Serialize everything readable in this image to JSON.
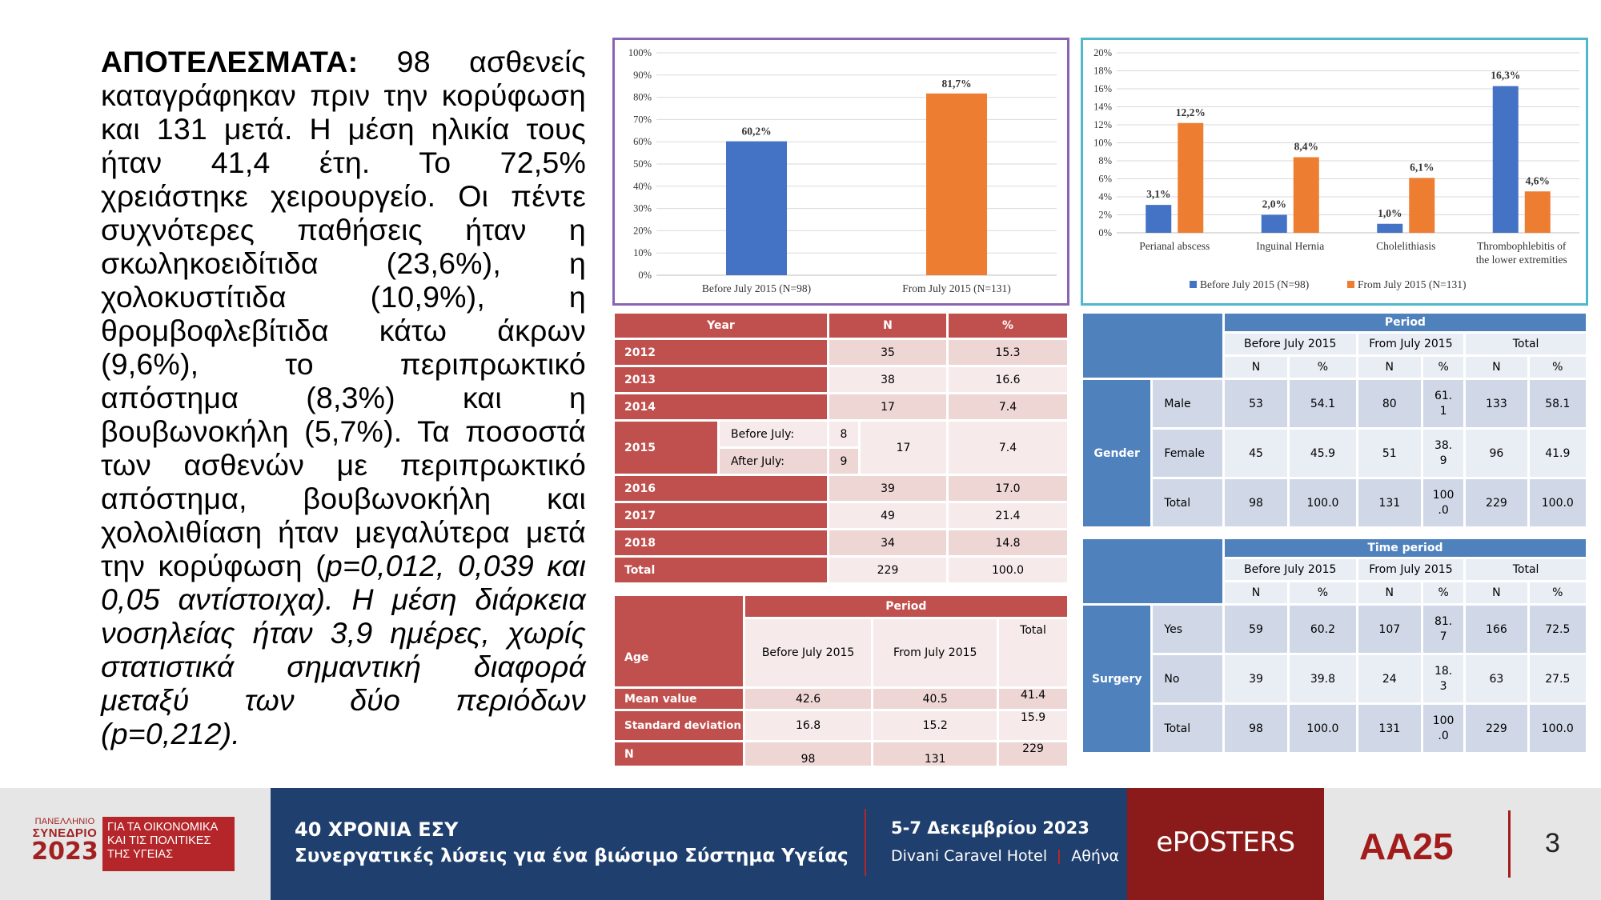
{
  "abstract": {
    "lines": [
      {
        "bold": "ΑΠΟΤΕΛΕΣΜΑΤΑ:",
        "text": " 98 ασθενείς"
      },
      {
        "text": "καταγράφηκαν πριν την κορύφωση"
      },
      {
        "text": "και 131 μετά. Η μέση ηλικία τους"
      },
      {
        "text": "ήταν 41,4 έτη. Το 72,5%"
      },
      {
        "text": "χρειάστηκε χειρουργείο. Οι πέντε"
      },
      {
        "text": "συχνότερες παθήσεις ήταν η"
      },
      {
        "text": "σκωληκοειδίτιδα (23,6%), η"
      },
      {
        "text": "χολοκυστίτιδα (10,9%), η"
      },
      {
        "text": "θρομβοφλεβίτιδα κάτω άκρων"
      },
      {
        "text": "(9,6%), το περιπρωκτικό"
      },
      {
        "text": "απόστημα (8,3%) και η"
      },
      {
        "text": "βουβωνοκήλη (5,7%). Τα ποσοστά"
      },
      {
        "text": "των ασθενών με περιπρωκτικό"
      },
      {
        "text": "απόστημα, βουβωνοκήλη και"
      },
      {
        "text": "χολολιθίαση ήταν μεγαλύτερα μετά"
      },
      {
        "text": "την κορύφωση (",
        "italic": "p=0,012, 0,039 και"
      },
      {
        "italic": "0,05 αντίστοιχα). Η μέση διάρκεια"
      },
      {
        "italic": "νοσηλείας ήταν 3,9 ημέρες, χωρίς"
      },
      {
        "italic": "στατιστικά σημαντική διαφορά"
      },
      {
        "italic": "μεταξύ των δύο περιόδων"
      },
      {
        "italic": "(p=0,212)."
      }
    ]
  },
  "colors": {
    "blue": "#4472c4",
    "orange": "#ed7d31"
  },
  "chart_data": [
    {
      "type": "bar",
      "categories": [
        "Before July 2015 (N=98)",
        "From July 2015 (N=131)"
      ],
      "values": [
        60.2,
        81.7
      ],
      "data_labels": [
        "60,2%",
        "81,7%"
      ],
      "bar_colors": [
        "#4472c4",
        "#ed7d31"
      ],
      "yticks": [
        "0%",
        "10%",
        "20%",
        "30%",
        "40%",
        "50%",
        "60%",
        "70%",
        "80%",
        "90%",
        "100%"
      ],
      "ylim": [
        0,
        100
      ],
      "grid": true
    },
    {
      "type": "bar",
      "categories": [
        "Perianal abscess",
        "Inguinal Hernia",
        "Cholelithiasis",
        "Thrombophlebitis of the lower extremities"
      ],
      "category_lines": [
        [
          "Perianal abscess"
        ],
        [
          "Inguinal Hernia"
        ],
        [
          "Cholelithiasis"
        ],
        [
          "Thrombophlebitis of",
          "the lower extremities"
        ]
      ],
      "series": [
        {
          "name": "Before July 2015 (N=98)",
          "values": [
            3.1,
            2.0,
            1.0,
            16.3
          ],
          "labels": [
            "3,1%",
            "2,0%",
            "1,0%",
            "16,3%"
          ],
          "color": "#4472c4"
        },
        {
          "name": "From July 2015 (N=131)",
          "values": [
            12.2,
            8.4,
            6.1,
            4.6
          ],
          "labels": [
            "12,2%",
            "8,4%",
            "6,1%",
            "4,6%"
          ],
          "color": "#ed7d31"
        }
      ],
      "yticks": [
        "0%",
        "2%",
        "4%",
        "6%",
        "8%",
        "10%",
        "12%",
        "14%",
        "16%",
        "18%",
        "20%"
      ],
      "ylim": [
        0,
        20
      ],
      "grid": true,
      "legend": "bottom"
    }
  ],
  "year_table": {
    "headers": [
      "Year",
      "N",
      "%"
    ],
    "rows": [
      {
        "year": "2012",
        "n": "35",
        "pct": "15.3"
      },
      {
        "year": "2013",
        "n": "38",
        "pct": "16.6"
      },
      {
        "year": "2014",
        "n": "17",
        "pct": "7.4"
      }
    ],
    "row2015": {
      "year": "2015",
      "before_label": "Before July:",
      "before_n": "8",
      "after_label": "After July:",
      "after_n": "9",
      "n": "17",
      "pct": "7.4"
    },
    "rows_after": [
      {
        "year": "2016",
        "n": "39",
        "pct": "17.0"
      },
      {
        "year": "2017",
        "n": "49",
        "pct": "21.4"
      },
      {
        "year": "2018",
        "n": "34",
        "pct": "14.8"
      },
      {
        "year": "Total",
        "n": "229",
        "pct": "100.0"
      }
    ]
  },
  "age_table": {
    "age_label": "Age",
    "period_label": "Period",
    "col_before": "Before July 2015",
    "col_from": "From July 2015",
    "col_total": "Total",
    "rows": [
      {
        "label": "Mean value",
        "before": "42.6",
        "from": "40.5",
        "total": "41.4"
      },
      {
        "label": "Standard deviation",
        "before": "16.8",
        "from": "15.2",
        "total": "15.9"
      },
      {
        "label": "N",
        "before": "98",
        "from": "131",
        "total": "229"
      }
    ]
  },
  "gender_table": {
    "group_label": "Period",
    "cols": [
      "Before July 2015",
      "From July 2015",
      "Total"
    ],
    "sub": [
      "N",
      "%",
      "N",
      "%",
      "N",
      "%"
    ],
    "row_group": "Gender",
    "rows": [
      {
        "label": "Male",
        "vals": [
          "53",
          "54.1",
          "80",
          "61.",
          "1",
          "133",
          "58.1"
        ]
      },
      {
        "label": "Female",
        "vals": [
          "45",
          "45.9",
          "51",
          "38.",
          "9",
          "96",
          "41.9"
        ]
      },
      {
        "label": "Total",
        "vals": [
          "98",
          "100.0",
          "131",
          "100",
          ".0",
          "229",
          "100.0"
        ]
      }
    ]
  },
  "surgery_table": {
    "group_label": "Time period",
    "cols": [
      "Before July 2015",
      "From July 2015",
      "Total"
    ],
    "sub": [
      "N",
      "%",
      "N",
      "%",
      "N",
      "%"
    ],
    "row_group": "Surgery",
    "rows": [
      {
        "label": "Yes",
        "vals": [
          "59",
          "60.2",
          "107",
          "81.",
          "7",
          "166",
          "72.5"
        ]
      },
      {
        "label": "No",
        "vals": [
          "39",
          "39.8",
          "24",
          "18.",
          "3",
          "63",
          "27.5"
        ]
      },
      {
        "label": "Total",
        "vals": [
          "98",
          "100.0",
          "131",
          "100",
          ".0",
          "229",
          "100.0"
        ]
      }
    ]
  },
  "footer": {
    "logo_line1": "ΠΑΝΕΛΛΗΝΙΟ",
    "logo_line2": "ΣΥΝΕΔΡΙΟ",
    "logo_year": "2023",
    "logo_right1": "ΓΙΑ ΤΑ ΟΙΚΟΝΟΜΙΚΑ",
    "logo_right2": "ΚΑΙ ΤΙΣ ΠΟΛΙΤΙΚΕΣ",
    "logo_right3": "ΤΗΣ ΥΓΕΙΑΣ",
    "title1": "40 ΧΡΟΝΙΑ ΕΣΥ",
    "title2": "Συνεργατικές λύσεις για ένα βιώσιμο Σύστημα Υγείας",
    "date": "5-7 Δεκεμβρίου 2023",
    "venue": "Divani Caravel Hotel",
    "city": "Αθήνα",
    "eposters": "ePOSTERS",
    "code": "AA25",
    "page": "3"
  }
}
